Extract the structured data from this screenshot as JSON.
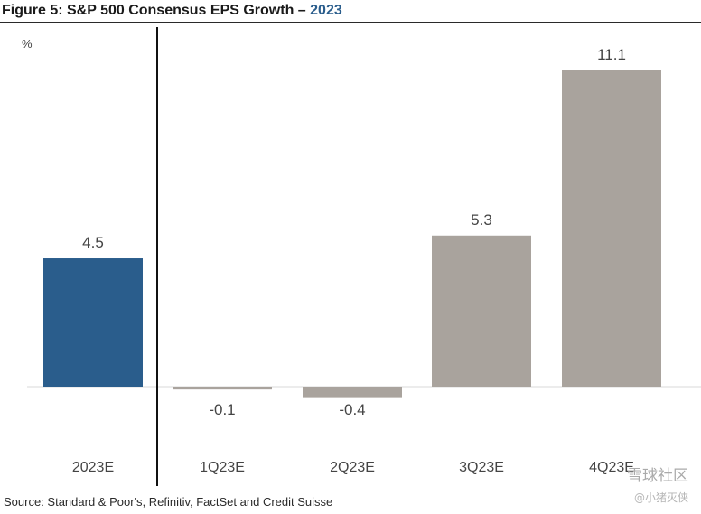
{
  "header": {
    "title_prefix": "Figure 5: S&P 500 Consensus EPS Growth – ",
    "title_year": "2023"
  },
  "footer": {
    "source": "Source: Standard & Poor's, Refinitiv, FactSet and Credit Suisse"
  },
  "watermark": {
    "line1": "雪球社区",
    "line2": "@小猪灭侠"
  },
  "colors": {
    "highlight_bar": "#2a5d8c",
    "other_bar": "#a9a39d",
    "divider": "#111111",
    "text": "#444444"
  },
  "chart_data": {
    "type": "bar",
    "title": "S&P 500 Consensus EPS Growth – 2023",
    "ylabel": "%",
    "xlabel": "",
    "categories": [
      "2023E",
      "1Q23E",
      "2Q23E",
      "3Q23E",
      "4Q23E"
    ],
    "values": [
      4.5,
      -0.1,
      -0.4,
      5.3,
      11.1
    ],
    "data_labels": [
      "4.5",
      "-0.1",
      "-0.4",
      "5.3",
      "11.1"
    ],
    "highlight_index": 0,
    "ylim": [
      -0.6,
      12.5
    ],
    "grid": false,
    "legend": "none"
  }
}
